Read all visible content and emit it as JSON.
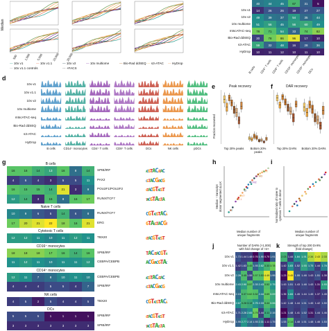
{
  "panel_labels": {
    "d": "d",
    "e": "e",
    "f": "f",
    "g": "g",
    "h": "h",
    "i": "i",
    "j": "j",
    "k": "k"
  },
  "top_left": {
    "legend": [
      "10x v1",
      "10x v1.1",
      "10x v2",
      "10x multiome",
      "Bio-Rad ddSEQ",
      "s3-ATAC",
      "HyDrop",
      "mtscATAC-seq",
      "10x v1.1 controls",
      "+FACS"
    ],
    "ylabel_fragments": [
      "Median fragm...",
      "...r cell"
    ],
    "xticks": [
      "500",
      "1,000",
      "5,000",
      "10,000",
      "20,000"
    ],
    "left_cut_ylabel": [
      "Median",
      "Sat",
      "Mb"
    ]
  },
  "top_right_heatmap": {
    "rows": [
      "10x v1",
      "10x v2",
      "10x multiome",
      "mtscATAC-seq",
      "Bio-Rad ddSEQ",
      "s3-ATAC",
      "HyDrop"
    ],
    "cols": [
      "B cells",
      "CD4⁺ T cells",
      "CD8⁺ T cells",
      "CD14⁺ monocytes",
      "CD16⁺ monocytes",
      "DCs"
    ],
    "values": [
      [
        "14",
        "26",
        "26",
        "19",
        "27",
        "27"
      ],
      [
        "49",
        "39",
        "37",
        "54",
        "35",
        "44"
      ],
      [
        "51",
        "56",
        "45",
        "56",
        "60",
        "49"
      ],
      [
        "78",
        "71",
        "54",
        "33",
        "74",
        "82"
      ],
      [
        "20",
        "78",
        "86",
        "96",
        "17",
        "10"
      ],
      [
        "59",
        "32",
        "48",
        "16",
        "28",
        "36"
      ],
      [
        "10",
        "11",
        "12",
        "10",
        "11",
        "10"
      ]
    ],
    "top_values": [
      "40",
      "44",
      "45",
      "67",
      "31",
      "5"
    ]
  },
  "d": {
    "rows": [
      "10x v1",
      "10x v1.1",
      "10x v2",
      "10x multiome",
      "mtscATAC-seq",
      "Bio-Rad ddSEQ",
      "s3-ATAC",
      "HyDrop"
    ],
    "cols": [
      "B cells",
      "CD14⁺ monocytes",
      "CD4⁺ T cells",
      "CD8⁺ T cells",
      "DCs",
      "NK cells",
      "pDCs"
    ]
  },
  "e": {
    "title": "Peak recovery",
    "ylabel": "Fraction recovered",
    "xcats": [
      "Top 20% peaks",
      "Bottom 20% peaks"
    ],
    "yticks": [
      "0.8",
      "0.6",
      "0.4",
      "0.2",
      "0"
    ]
  },
  "f": {
    "title": "DAR recovery",
    "xcats": [
      "Top 20% DARs",
      "Bottom 20% DARs"
    ]
  },
  "g": {
    "groups": [
      {
        "title": "B cells",
        "tfs": [
          "SPIB/IRF",
          "PAX2",
          "POU2F1/POU2F2",
          "RUNX/TCF7"
        ]
      },
      {
        "title": "Naive T cells",
        "tfs": [
          "RUNX/TCF7",
          "ERG"
        ]
      },
      {
        "title": "Cytotoxic T cells",
        "tfs": [
          "TBX20"
        ]
      },
      {
        "title": "CD16⁺ monocytes",
        "tfs": [
          "SPIB/IRF",
          "CEBPA/CEBPB"
        ]
      },
      {
        "title": "CD14⁺ monocytes",
        "tfs": [
          "CEBPA/CEBPB",
          "SPIB/IRF"
        ]
      },
      {
        "title": "NK cells",
        "tfs": [
          "TBX20"
        ]
      },
      {
        "title": "DCs",
        "tfs": [
          "SPIB/IRF",
          "SPIB/IRF"
        ]
      }
    ],
    "grid": [
      [
        "16",
        "16",
        "14",
        "13",
        "16",
        "8",
        "14"
      ],
      [
        "4",
        "6",
        "4",
        "3",
        "5",
        "5",
        "11"
      ],
      [
        "16",
        "15",
        "15",
        "14",
        "21",
        "3",
        "9"
      ],
      [
        "12",
        "14",
        "3",
        "15",
        "8",
        "16",
        "17"
      ],
      [
        "10",
        "9",
        "6",
        "5",
        "14",
        "6",
        "8"
      ],
      [
        "17",
        "20",
        "21",
        "22",
        "18",
        "16",
        "21"
      ],
      [
        "12",
        "12",
        "11",
        "10",
        "11",
        "12",
        "11"
      ],
      [
        "18",
        "18",
        "18",
        "17",
        "16",
        "14",
        "16"
      ],
      [
        "11",
        "12",
        "11",
        "10",
        "11",
        "11",
        "12"
      ],
      [
        "12",
        "11",
        "7",
        "8",
        "10",
        "11",
        "10"
      ],
      [
        "4",
        "4",
        "4",
        "5",
        "5",
        "4",
        "7"
      ],
      [
        "4",
        "5",
        "2",
        "5",
        "4",
        "4",
        "5"
      ],
      [
        "5",
        "5",
        "5",
        "1",
        "1",
        "1",
        "1"
      ],
      [
        "3",
        "3",
        "3",
        "3",
        "3",
        "3",
        "3"
      ],
      [
        "1",
        "3",
        "9",
        "3",
        "5",
        "1",
        "1"
      ]
    ]
  },
  "h": {
    "ylabel": [
      "Median ↑ transcript",
      "donor segmented ΔLLK"
    ],
    "xlabel": [
      "Median number of",
      "unique fragments"
    ],
    "xticks": [
      "5,000",
      "10,000",
      "15,000",
      "20,000"
    ],
    "point_labels": [
      "v1",
      "v1.1",
      "v2",
      "ml M2",
      "ml M3",
      "s3 O2",
      "HyD",
      "dd C1"
    ]
  },
  "i": {
    "ylabel": [
      "Normalized ratio of naive to",
      "cytotoxic T cells in donor"
    ],
    "xlabel": [
      "Median number of",
      "unique fragments"
    ],
    "xticks": [
      "5,000",
      "10,000",
      "15,000",
      "20,000"
    ]
  },
  "j": {
    "title": [
      "Number of DARs (×1,000)",
      "with fold change of >2×"
    ],
    "rows": [
      "10x v1",
      "10x v1.1",
      "10x v2",
      "10x multiome",
      "mtscATAC-seq",
      "Bio-Rad ddSEQ",
      "s3-ATAC",
      "HyDrop"
    ],
    "values": [
      [
        "1.73",
        "1.44",
        "1.48",
        "0.76",
        "1.95",
        "0.75",
        "1.91"
      ],
      [
        "1.42",
        "1.63",
        "3.45",
        "1.93",
        "2.82",
        "3.33",
        "3.78"
      ],
      [
        "2.26",
        "3.45",
        "1.55",
        "3.57",
        "3.53",
        "4.49",
        "1.95"
      ],
      [
        "2.43",
        "2.90",
        "3.57",
        "2.33",
        "2.43",
        "3.52",
        "2.75"
      ],
      [
        "2.15",
        "3.37",
        "3.62",
        "3.52",
        "2.44",
        "3.69",
        "3.09"
      ],
      [
        "2.67",
        "3.28",
        "3.13",
        "2.75",
        "2.33",
        "3.44",
        "3.06"
      ],
      [
        "1.71",
        "2.26",
        "2.65",
        "3.79",
        "1.44",
        "3.11",
        "2.15"
      ],
      [
        "1.95",
        "2.77",
        "2.14",
        "1.93",
        "2.31",
        "1.11",
        "1.75"
      ]
    ]
  },
  "k": {
    "title": [
      "Strength of top 200 DARs",
      "(fold change)"
    ],
    "values": [
      [
        "2.03",
        "1.44",
        "1.84",
        "1.91",
        "2.34",
        "2.43",
        "2.33"
      ],
      [
        "1.42",
        "1.83",
        "1.52",
        "1.93",
        "1.75",
        "1.44",
        "1.78"
      ],
      [
        "1.23",
        "3.45",
        "1.55",
        "1.48",
        "1.43",
        "1.51",
        "1.35"
      ],
      [
        "1.43",
        "1.51",
        "1.43",
        "1.48",
        "1.43",
        "1.31",
        "1.93"
      ],
      [
        "1.35",
        "1.84",
        "1.45",
        "1.44",
        "1.45",
        "1.37",
        "1.45"
      ],
      [
        "1.42",
        "1.48",
        "1.44",
        "1.51",
        "1.45",
        "1.42",
        "1.50"
      ],
      [
        "1.21",
        "1.48",
        "1.41",
        "1.52",
        "1.31",
        "1.44",
        "1.46"
      ],
      [
        "1.53",
        "2.14",
        "1.48",
        "1.51",
        "1.48",
        "1.46",
        "1.53"
      ]
    ]
  },
  "colors": {
    "viridis": [
      "#440154",
      "#3b528b",
      "#21918c",
      "#5ec962",
      "#fde725"
    ],
    "yellow": "#fde725",
    "teal": "#21918c",
    "purple": "#440154"
  }
}
